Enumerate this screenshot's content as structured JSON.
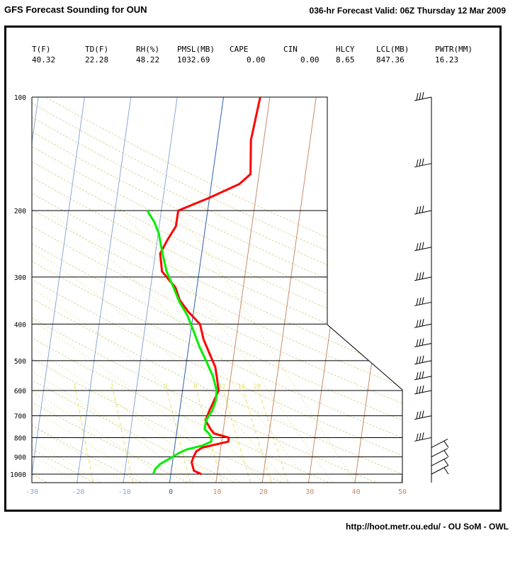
{
  "header": {
    "title": "GFS Forecast Sounding for OUN",
    "valid": "036-hr Forecast Valid: 06Z Thursday 12 Mar 2009"
  },
  "footer": {
    "credit": "http://hoot.metr.ou.edu/ - OU SoM - OWL"
  },
  "stats": {
    "labels": [
      "T(F)",
      "TD(F)",
      "RH(%)",
      "PMSL(MB)",
      "CAPE",
      "CIN",
      "HLCY",
      "LCL(MB)",
      "PWTR(MM)"
    ],
    "values": [
      "40.32",
      "22.28",
      "48.22",
      "1032.69",
      "0.00",
      "0.00",
      "8.65",
      "847.36",
      "16.23"
    ]
  },
  "colors": {
    "temperature": "#ff0000",
    "dewpoint": "#00ee00",
    "isotherm": "#8aa8d8",
    "dry_adiabat": "#d8d8a0",
    "moist_adiabat": "#dfe08a",
    "mixing_ratio": "#e8e060",
    "warm_isotherm": "#c98b6a",
    "zero_isotherm": "#3060a8"
  },
  "chart_data": {
    "type": "line",
    "pressure_levels_mb": [
      100,
      200,
      300,
      400,
      500,
      600,
      700,
      800,
      900,
      1000
    ],
    "pressure_tick_labels": [
      "100",
      "200",
      "300",
      "400",
      "500",
      "600",
      "700",
      "800",
      "900",
      "1000"
    ],
    "temperature_tick_labels": [
      "-30",
      "-20",
      "-10",
      "0",
      "10",
      "20",
      "30",
      "40",
      "50"
    ],
    "temperature_ticks": [
      -30,
      -20,
      -10,
      0,
      10,
      20,
      30,
      40,
      50
    ],
    "xlim": [
      -30,
      50
    ],
    "mixing_ratio_labels": [
      "1",
      "2",
      "5",
      "8",
      "12",
      "16",
      "20"
    ],
    "series": [
      {
        "key": "temperature",
        "pressure": [
          1000,
          980,
          960,
          930,
          900,
          870,
          850,
          820,
          800,
          780,
          760,
          720,
          680,
          640,
          600,
          560,
          520,
          480,
          440,
          400,
          370,
          345,
          320,
          290,
          260,
          240,
          220,
          200,
          185,
          170,
          160,
          130,
          100
        ],
        "x_at_1000": [
          6.6,
          5.0,
          4.8,
          4.5,
          4.9,
          5.5,
          6.8,
          12.4,
          12.5,
          9.3,
          8.6,
          7.5,
          8.3,
          9.3,
          10.3,
          10.0,
          9.6,
          8.4,
          7.1,
          6.3,
          3.7,
          1.9,
          1.0,
          -1.9,
          -2.3,
          -0.8,
          1.1,
          1.6,
          8.3,
          14.8,
          17.2,
          17.3,
          19.3
        ]
      },
      {
        "key": "dewpoint",
        "pressure": [
          1000,
          970,
          940,
          910,
          880,
          860,
          840,
          820,
          800,
          780,
          760,
          720,
          680,
          640,
          600,
          550,
          500,
          460,
          420,
          380,
          350,
          320,
          290,
          260,
          230,
          215,
          200
        ],
        "x_at_1000": [
          -3.8,
          -3.4,
          -2.3,
          -0.3,
          1.7,
          3.4,
          6.8,
          8.7,
          8.8,
          8.2,
          7.3,
          7.6,
          8.9,
          9.7,
          9.9,
          9.1,
          7.6,
          6.2,
          5.0,
          3.6,
          1.9,
          0.6,
          -0.9,
          -1.8,
          -2.6,
          -3.5,
          -5.1
        ]
      }
    ],
    "wind_barbs_mb": [
      100,
      150,
      200,
      250,
      300,
      350,
      400,
      450,
      500,
      550,
      600,
      700,
      800,
      850,
      900,
      950,
      1000
    ]
  }
}
